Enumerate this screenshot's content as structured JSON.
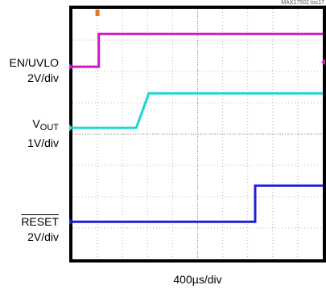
{
  "figure_id": "MAX17502 toc17",
  "chart_data": {
    "type": "line",
    "title": "",
    "xlabel": "400µs/div",
    "ylabel": "",
    "grid": true,
    "x_divisions": 10,
    "y_divisions": 8,
    "x_range": [
      0,
      10
    ],
    "y_range": [
      0,
      8
    ],
    "trigger_marker": {
      "x": 1.0,
      "color": "#e07a1a"
    },
    "channel_colors": [
      "#d316c9",
      "#1ed6d3",
      "#1f1fd6"
    ],
    "channel_labels": [
      {
        "line1": "EN/UVLO",
        "line2": "2V/div"
      },
      {
        "line1": "V",
        "line1_sub": "OUT",
        "line2": "1V/div"
      },
      {
        "line1": "RESET",
        "line2": "2V/div",
        "overline": true
      }
    ],
    "series": [
      {
        "name": "EN/UVLO",
        "volts_per_div": 2,
        "ground_div": 6.15,
        "x": [
          0,
          1.05,
          1.05,
          10
        ],
        "y_div": [
          6.15,
          6.15,
          7.2,
          7.2
        ]
      },
      {
        "name": "VOUT",
        "volts_per_div": 1,
        "ground_div": 4.2,
        "x": [
          0,
          2.55,
          3.05,
          10
        ],
        "y_div": [
          4.2,
          4.2,
          5.3,
          5.3
        ]
      },
      {
        "name": "RESET",
        "volts_per_div": 2,
        "ground_div": 1.2,
        "x": [
          0,
          7.3,
          7.3,
          10
        ],
        "y_div": [
          1.2,
          1.2,
          2.35,
          2.35
        ]
      }
    ]
  }
}
